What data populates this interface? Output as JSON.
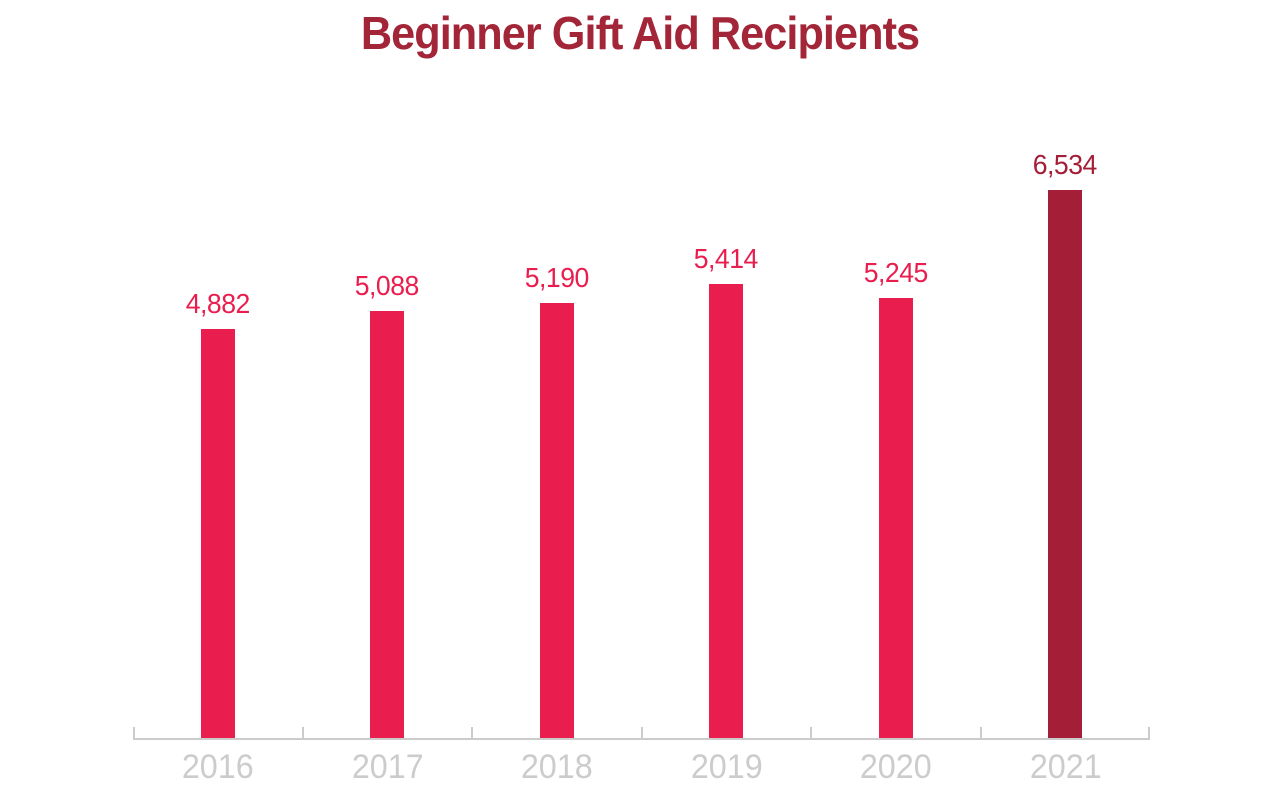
{
  "chart_data": {
    "type": "bar",
    "title": "Beginner Gift Aid Recipients",
    "categories": [
      "2016",
      "2017",
      "2018",
      "2019",
      "2020",
      "2021"
    ],
    "values": [
      4882,
      5088,
      5190,
      5414,
      5245,
      6534
    ],
    "value_labels": [
      "4,882",
      "5,088",
      "5,190",
      "5,414",
      "5,245",
      "6,534"
    ],
    "xlabel": "",
    "ylabel": "",
    "ylim": [
      0,
      6534
    ],
    "grid": "off",
    "legend": "none",
    "highlight_index": 5,
    "colors": {
      "bar": "#E91E4F",
      "highlight_bar": "#A51E38",
      "title": "#A32638",
      "axis": "#CCCCCC",
      "tick_label": "#CCCCCC"
    }
  }
}
